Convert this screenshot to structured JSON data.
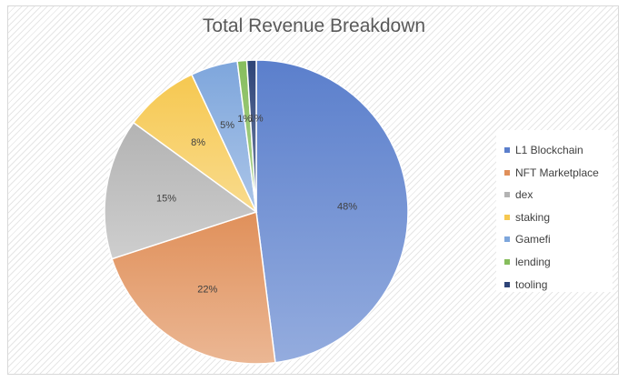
{
  "chart_data": {
    "type": "pie",
    "title": "Total Revenue Breakdown",
    "categories": [
      "L1 Blockchain",
      "NFT Marketplace",
      "dex",
      "staking",
      "Gamefi",
      "lending",
      "tooling"
    ],
    "values": [
      48,
      22,
      15,
      8,
      5,
      1,
      1
    ],
    "labels": [
      "48%",
      "22%",
      "15%",
      "8%",
      "5%",
      "1%",
      "1%"
    ],
    "colors": [
      "#5b7fcc",
      "#e0905a",
      "#b3b3b3",
      "#f6c850",
      "#7ea6dc",
      "#86bd5c",
      "#2e4478"
    ],
    "legend_position": "right"
  }
}
